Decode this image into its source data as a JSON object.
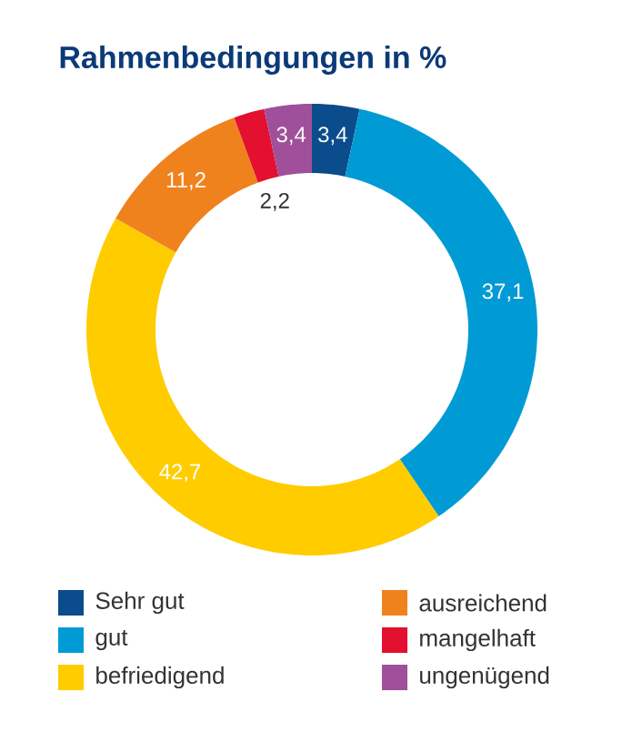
{
  "chart_data": {
    "type": "donut",
    "title": "Rahmenbedingungen in %",
    "categories": [
      "Sehr gut",
      "gut",
      "befriedigend",
      "ausreichend",
      "mangelhaft",
      "ungenügend"
    ],
    "values": [
      3.4,
      37.1,
      42.7,
      11.2,
      2.2,
      3.4
    ],
    "value_labels": [
      "3,4",
      "37,1",
      "42,7",
      "11,2",
      "2,2",
      "3,4"
    ],
    "colors": [
      "#0b4c8c",
      "#009bd5",
      "#ffcc00",
      "#f0821e",
      "#e3102f",
      "#a0509a"
    ],
    "legend": "bottom"
  }
}
